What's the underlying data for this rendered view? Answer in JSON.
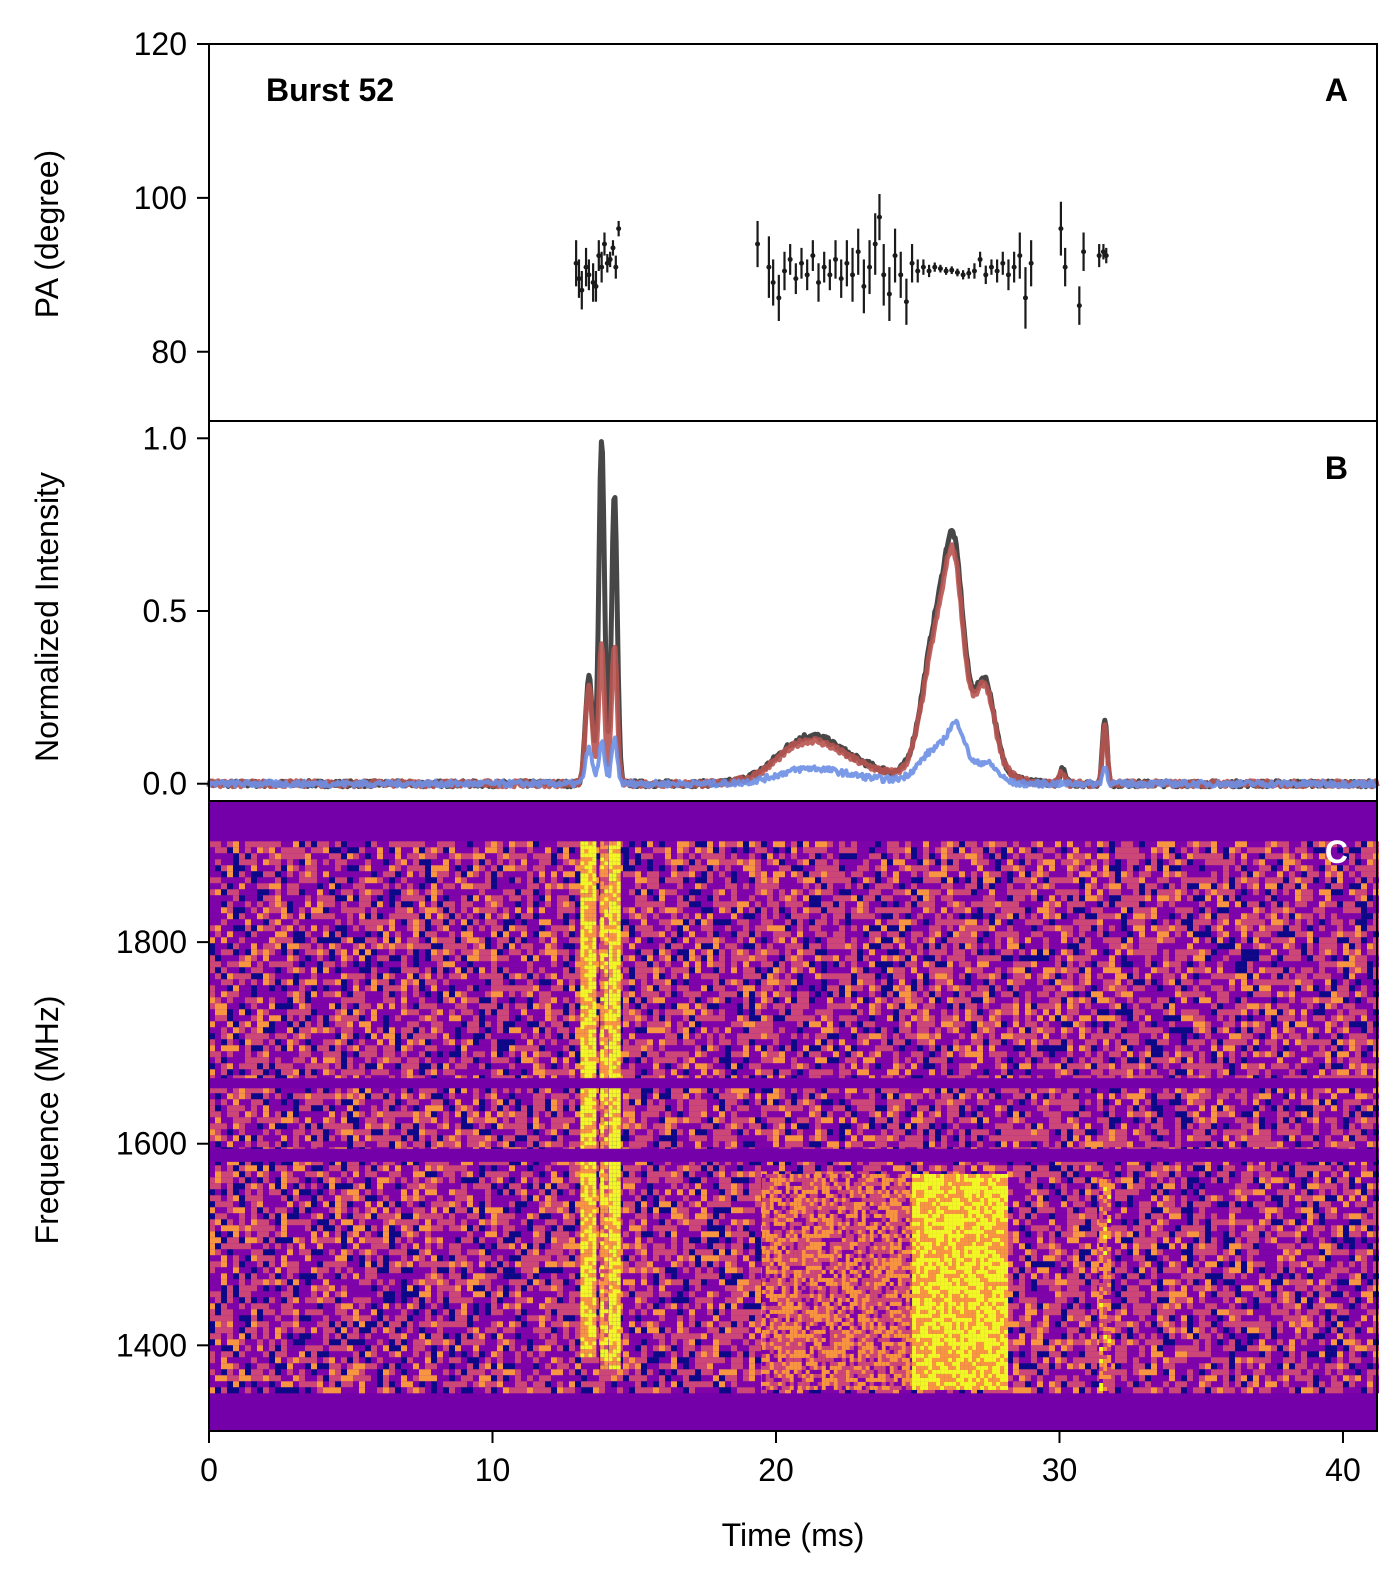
{
  "chart_data": [
    {
      "panel": "A",
      "type": "scatter",
      "annotation": "Burst 52",
      "ylabel": "PA (degree)",
      "ylim": [
        71,
        120
      ],
      "yticks": [
        "80",
        "100",
        "120"
      ],
      "yticks_values": [
        80,
        100,
        120
      ],
      "xlim": [
        0,
        41.2
      ],
      "color": "#1a1a1a",
      "points": [
        {
          "x": 12.95,
          "y": 91.5,
          "err": 3.0
        },
        {
          "x": 13.05,
          "y": 89.5,
          "err": 2.5
        },
        {
          "x": 13.15,
          "y": 88.0,
          "err": 2.5
        },
        {
          "x": 13.3,
          "y": 91.0,
          "err": 2.5
        },
        {
          "x": 13.4,
          "y": 90.0,
          "err": 2.0
        },
        {
          "x": 13.55,
          "y": 89.0,
          "err": 2.5
        },
        {
          "x": 13.65,
          "y": 88.5,
          "err": 2.0
        },
        {
          "x": 13.75,
          "y": 92.5,
          "err": 2.0
        },
        {
          "x": 13.85,
          "y": 91.0,
          "err": 2.0
        },
        {
          "x": 13.95,
          "y": 94.0,
          "err": 1.5
        },
        {
          "x": 14.05,
          "y": 91.5,
          "err": 1.2
        },
        {
          "x": 14.15,
          "y": 92.0,
          "err": 1.0
        },
        {
          "x": 14.25,
          "y": 93.5,
          "err": 1.0
        },
        {
          "x": 14.35,
          "y": 91.0,
          "err": 1.5
        },
        {
          "x": 14.45,
          "y": 96.0,
          "err": 1.0
        },
        {
          "x": 19.35,
          "y": 94.0,
          "err": 3.0
        },
        {
          "x": 19.75,
          "y": 91.0,
          "err": 4.0
        },
        {
          "x": 19.9,
          "y": 89.0,
          "err": 3.0
        },
        {
          "x": 20.1,
          "y": 87.0,
          "err": 3.0
        },
        {
          "x": 20.3,
          "y": 90.5,
          "err": 2.5
        },
        {
          "x": 20.5,
          "y": 92.0,
          "err": 2.0
        },
        {
          "x": 20.7,
          "y": 89.5,
          "err": 2.0
        },
        {
          "x": 20.9,
          "y": 91.5,
          "err": 2.0
        },
        {
          "x": 21.1,
          "y": 90.0,
          "err": 2.0
        },
        {
          "x": 21.3,
          "y": 92.5,
          "err": 2.0
        },
        {
          "x": 21.5,
          "y": 89.0,
          "err": 2.5
        },
        {
          "x": 21.7,
          "y": 91.0,
          "err": 2.0
        },
        {
          "x": 21.9,
          "y": 90.0,
          "err": 2.0
        },
        {
          "x": 22.1,
          "y": 92.0,
          "err": 2.5
        },
        {
          "x": 22.3,
          "y": 89.5,
          "err": 2.5
        },
        {
          "x": 22.5,
          "y": 91.5,
          "err": 3.0
        },
        {
          "x": 22.7,
          "y": 90.0,
          "err": 3.5
        },
        {
          "x": 22.9,
          "y": 93.0,
          "err": 3.0
        },
        {
          "x": 23.1,
          "y": 88.5,
          "err": 3.5
        },
        {
          "x": 23.3,
          "y": 91.0,
          "err": 3.5
        },
        {
          "x": 23.5,
          "y": 94.0,
          "err": 4.0
        },
        {
          "x": 23.65,
          "y": 97.5,
          "err": 3.0
        },
        {
          "x": 23.8,
          "y": 90.0,
          "err": 4.0
        },
        {
          "x": 24.0,
          "y": 87.5,
          "err": 3.5
        },
        {
          "x": 24.2,
          "y": 92.5,
          "err": 3.5
        },
        {
          "x": 24.4,
          "y": 90.0,
          "err": 3.0
        },
        {
          "x": 24.6,
          "y": 86.5,
          "err": 3.0
        },
        {
          "x": 24.8,
          "y": 91.5,
          "err": 2.5
        },
        {
          "x": 25.0,
          "y": 90.5,
          "err": 1.5
        },
        {
          "x": 25.2,
          "y": 91.0,
          "err": 1.0
        },
        {
          "x": 25.4,
          "y": 90.5,
          "err": 0.8
        },
        {
          "x": 25.6,
          "y": 91.0,
          "err": 0.6
        },
        {
          "x": 25.8,
          "y": 90.8,
          "err": 0.5
        },
        {
          "x": 26.0,
          "y": 90.5,
          "err": 0.5
        },
        {
          "x": 26.2,
          "y": 90.6,
          "err": 0.5
        },
        {
          "x": 26.4,
          "y": 90.3,
          "err": 0.5
        },
        {
          "x": 26.6,
          "y": 90.0,
          "err": 0.6
        },
        {
          "x": 26.8,
          "y": 90.2,
          "err": 0.7
        },
        {
          "x": 27.0,
          "y": 90.5,
          "err": 1.0
        },
        {
          "x": 27.2,
          "y": 92.0,
          "err": 1.0
        },
        {
          "x": 27.4,
          "y": 90.0,
          "err": 1.2
        },
        {
          "x": 27.6,
          "y": 91.0,
          "err": 1.0
        },
        {
          "x": 27.8,
          "y": 90.5,
          "err": 1.5
        },
        {
          "x": 28.0,
          "y": 91.5,
          "err": 1.5
        },
        {
          "x": 28.2,
          "y": 90.0,
          "err": 2.0
        },
        {
          "x": 28.4,
          "y": 91.0,
          "err": 2.0
        },
        {
          "x": 28.6,
          "y": 92.5,
          "err": 3.0
        },
        {
          "x": 28.8,
          "y": 87.0,
          "err": 4.0
        },
        {
          "x": 29.0,
          "y": 91.5,
          "err": 3.0
        },
        {
          "x": 30.05,
          "y": 96.0,
          "err": 3.5
        },
        {
          "x": 30.2,
          "y": 91.0,
          "err": 2.5
        },
        {
          "x": 30.7,
          "y": 86.0,
          "err": 2.5
        },
        {
          "x": 30.85,
          "y": 93.0,
          "err": 2.5
        },
        {
          "x": 31.4,
          "y": 92.5,
          "err": 1.5
        },
        {
          "x": 31.55,
          "y": 93.0,
          "err": 1.0
        },
        {
          "x": 31.65,
          "y": 92.5,
          "err": 1.0
        }
      ]
    },
    {
      "panel": "B",
      "type": "line",
      "ylabel": "Normalized Intensity",
      "ylim": [
        -0.05,
        1.05
      ],
      "yticks": [
        "0.0",
        "0.5",
        "1.0"
      ],
      "yticks_values": [
        0,
        0.5,
        1.0
      ],
      "xlim": [
        0,
        41.2
      ],
      "series": [
        {
          "color": "#333333",
          "width": 5,
          "peaks": [
            [
              13.4,
              0.31,
              0.12
            ],
            [
              13.85,
              1.0,
              0.1
            ],
            [
              14.3,
              0.84,
              0.1
            ],
            [
              21.0,
              0.095,
              1.0
            ],
            [
              22.3,
              0.06,
              1.5
            ],
            [
              25.7,
              0.37,
              0.5
            ],
            [
              26.3,
              0.36,
              0.3
            ],
            [
              27.4,
              0.18,
              0.3
            ],
            [
              26.6,
              0.18,
              0.9
            ],
            [
              30.1,
              0.04,
              0.1
            ],
            [
              31.6,
              0.19,
              0.08
            ]
          ]
        },
        {
          "color": "#b85450",
          "width": 5,
          "peaks": [
            [
              13.4,
              0.28,
              0.12
            ],
            [
              13.85,
              0.4,
              0.1
            ],
            [
              14.3,
              0.4,
              0.1
            ],
            [
              21.0,
              0.085,
              1.0
            ],
            [
              22.3,
              0.055,
              1.5
            ],
            [
              25.7,
              0.34,
              0.5
            ],
            [
              26.3,
              0.34,
              0.3
            ],
            [
              27.4,
              0.17,
              0.3
            ],
            [
              26.6,
              0.17,
              0.9
            ],
            [
              30.1,
              0.035,
              0.1
            ],
            [
              31.6,
              0.17,
              0.08
            ]
          ]
        },
        {
          "color": "#6b8fe6",
          "width": 4,
          "peaks": [
            [
              13.4,
              0.1,
              0.12
            ],
            [
              13.85,
              0.12,
              0.1
            ],
            [
              14.3,
              0.13,
              0.1
            ],
            [
              21.0,
              0.03,
              1.0
            ],
            [
              22.3,
              0.02,
              1.5
            ],
            [
              25.7,
              0.1,
              0.6
            ],
            [
              26.4,
              0.12,
              0.3
            ],
            [
              27.4,
              0.06,
              0.4
            ],
            [
              31.6,
              0.05,
              0.08
            ]
          ]
        }
      ]
    },
    {
      "panel": "C",
      "type": "heatmap",
      "xlabel": "Time (ms)",
      "ylabel": "Frequence (MHz)",
      "xlim": [
        0,
        41.2
      ],
      "ylim": [
        1315,
        1940
      ],
      "xticks": [
        "0",
        "10",
        "20",
        "30",
        "40"
      ],
      "xticks_values": [
        0,
        10,
        20,
        30,
        40
      ],
      "yticks": [
        "1400",
        "1600",
        "1800"
      ],
      "yticks_values": [
        1400,
        1600,
        1800
      ],
      "colormap": [
        "#0d0887",
        "#7e03a8",
        "#cc4778",
        "#f89540",
        "#f0f921"
      ],
      "background_color": "#7300a8",
      "valid_band_mhz": [
        1356,
        1900
      ],
      "masked_bands_mhz": [
        [
          1655,
          1665
        ],
        [
          1582,
          1595
        ]
      ],
      "components": [
        {
          "t_ms": [
            13.1,
            13.6
          ],
          "f_mhz": [
            1390,
            1900
          ],
          "level": 0.85
        },
        {
          "t_ms": [
            13.8,
            14.0
          ],
          "f_mhz": [
            1380,
            1900
          ],
          "level": 0.75
        },
        {
          "t_ms": [
            14.1,
            14.5
          ],
          "f_mhz": [
            1380,
            1900
          ],
          "level": 0.9
        },
        {
          "t_ms": [
            19.5,
            24.8
          ],
          "f_mhz": [
            1356,
            1570
          ],
          "level": 0.55
        },
        {
          "t_ms": [
            24.8,
            28.1
          ],
          "f_mhz": [
            1356,
            1570
          ],
          "level": 0.85
        },
        {
          "t_ms": [
            31.4,
            31.8
          ],
          "f_mhz": [
            1356,
            1565
          ],
          "level": 0.6
        }
      ]
    }
  ],
  "panel_labels": {
    "a": "A",
    "b": "B",
    "c": "C"
  }
}
